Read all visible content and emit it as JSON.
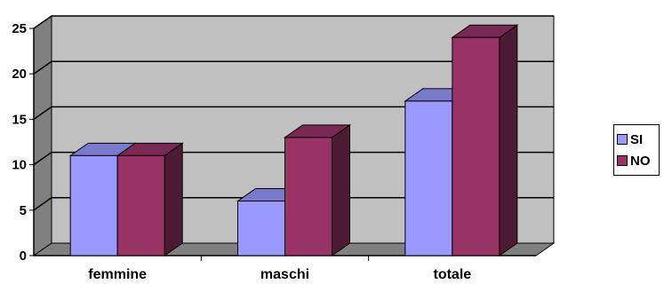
{
  "chart_data": {
    "type": "bar",
    "title": "",
    "xlabel": "",
    "ylabel": "",
    "categories": [
      "femmine",
      "maschi",
      "totale"
    ],
    "series": [
      {
        "name": "SI",
        "values": [
          11,
          6,
          17
        ],
        "color": "#9999FF"
      },
      {
        "name": "NO",
        "values": [
          11,
          13,
          24
        ],
        "color": "#993366"
      }
    ],
    "ylim": [
      0,
      25
    ],
    "yticks": [
      0,
      5,
      10,
      15,
      20,
      25
    ],
    "grid": true,
    "legend": "right",
    "style": {
      "wall_color": "#C0C0C0",
      "floor_color": "#808080",
      "three_d": true
    }
  }
}
